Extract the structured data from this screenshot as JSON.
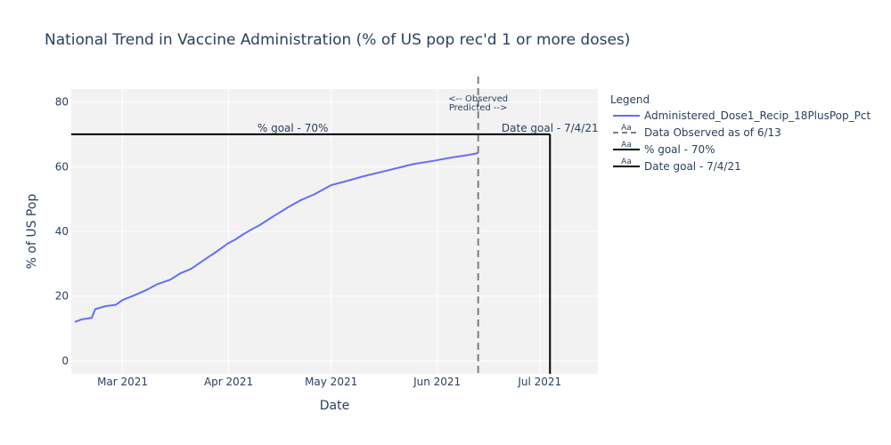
{
  "chart_data": {
    "type": "line",
    "title": "National Trend in Vaccine Administration (% of US pop rec'd 1 or more doses)",
    "xlabel": "Date",
    "ylabel": "% of US Pop",
    "x_range": [
      "2021-02-14",
      "2021-07-18"
    ],
    "ylim": [
      -4,
      84
    ],
    "y_ticks": [
      0,
      20,
      40,
      60,
      80
    ],
    "x_ticks": [
      {
        "date": "2021-03-01",
        "label": "Mar 2021"
      },
      {
        "date": "2021-04-01",
        "label": "Apr 2021"
      },
      {
        "date": "2021-05-01",
        "label": "May 2021"
      },
      {
        "date": "2021-06-01",
        "label": "Jun 2021"
      },
      {
        "date": "2021-07-01",
        "label": "Jul 2021"
      }
    ],
    "grid": true,
    "background": "#f2f2f2",
    "series": [
      {
        "name": "Administered_Dose1_Recip_18PlusPop_Pct",
        "color": "#636efa",
        "x": [
          "2021-02-15",
          "2021-02-17",
          "2021-02-20",
          "2021-02-21",
          "2021-02-24",
          "2021-02-27",
          "2021-03-01",
          "2021-03-05",
          "2021-03-08",
          "2021-03-11",
          "2021-03-15",
          "2021-03-18",
          "2021-03-21",
          "2021-03-25",
          "2021-03-28",
          "2021-04-01",
          "2021-04-03",
          "2021-04-05",
          "2021-04-07",
          "2021-04-10",
          "2021-04-14",
          "2021-04-18",
          "2021-04-22",
          "2021-04-26",
          "2021-05-01",
          "2021-05-05",
          "2021-05-10",
          "2021-05-15",
          "2021-05-20",
          "2021-05-25",
          "2021-05-31",
          "2021-06-05",
          "2021-06-10",
          "2021-06-13"
        ],
        "y": [
          12.0,
          12.8,
          13.3,
          16.0,
          16.9,
          17.3,
          18.8,
          20.5,
          21.9,
          23.6,
          25.1,
          27.1,
          28.4,
          31.3,
          33.4,
          36.4,
          37.5,
          38.9,
          40.2,
          41.9,
          44.6,
          47.2,
          49.6,
          51.4,
          54.3,
          55.4,
          56.9,
          58.2,
          59.5,
          60.8,
          61.8,
          62.8,
          63.6,
          64.2
        ]
      }
    ],
    "reference_lines": [
      {
        "name": "Data Observed as of 6/13",
        "kind": "vertical",
        "x": "2021-06-13",
        "style": "dashed",
        "color": "#7f7f7f"
      },
      {
        "name": "% goal - 70%",
        "kind": "horizontal",
        "y": 70,
        "style": "solid",
        "color": "#000000"
      },
      {
        "name": "Date goal - 7/4/21",
        "kind": "vertical",
        "x": "2021-07-04",
        "style": "solid",
        "color": "#000000"
      }
    ],
    "annotations": {
      "goal_pct": "% goal - 70%",
      "goal_date": "Date goal - 7/4/21",
      "observed": "<-- Observed",
      "predicted": "Predicted -->"
    },
    "legend": {
      "title": "Legend",
      "placement": "right",
      "entries": [
        "Administered_Dose1_Recip_18PlusPop_Pct",
        "Data Observed as of 6/13",
        "% goal - 70%",
        "Date goal - 7/4/21"
      ],
      "sample_text": "Aa"
    }
  }
}
